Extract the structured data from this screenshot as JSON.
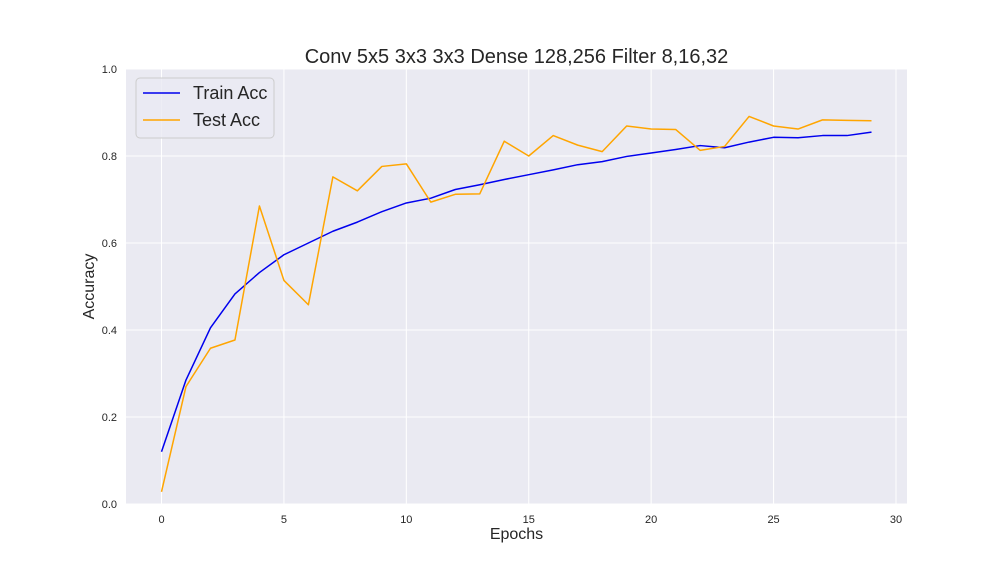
{
  "chart_data": {
    "type": "line",
    "title": "Conv 5x5 3x3 3x3 Dense 128,256 Filter 8,16,32",
    "xlabel": "Epochs",
    "ylabel": "Accuracy",
    "xlim": [
      -1.45,
      30.45
    ],
    "ylim": [
      0.0,
      1.0
    ],
    "xticks": [
      0,
      5,
      10,
      15,
      20,
      25,
      30
    ],
    "yticks": [
      0.0,
      0.2,
      0.4,
      0.6,
      0.8,
      1.0
    ],
    "xtick_labels": [
      "0",
      "5",
      "10",
      "15",
      "20",
      "25",
      "30"
    ],
    "ytick_labels": [
      "0.0",
      "0.2",
      "0.4",
      "0.6",
      "0.8",
      "1.0"
    ],
    "grid": true,
    "legend_position": "top-left",
    "x": [
      0,
      1,
      2,
      3,
      4,
      5,
      6,
      7,
      8,
      9,
      10,
      11,
      12,
      13,
      14,
      15,
      16,
      17,
      18,
      19,
      20,
      21,
      22,
      23,
      24,
      25,
      26,
      27,
      28,
      29
    ],
    "series": [
      {
        "name": "Train Acc",
        "color": "#0000ee",
        "values": [
          0.12,
          0.285,
          0.405,
          0.483,
          0.532,
          0.573,
          0.6,
          0.627,
          0.648,
          0.672,
          0.692,
          0.703,
          0.723,
          0.734,
          0.746,
          0.757,
          0.768,
          0.78,
          0.787,
          0.799,
          0.807,
          0.815,
          0.824,
          0.819,
          0.832,
          0.843,
          0.842,
          0.847,
          0.847,
          0.855
        ]
      },
      {
        "name": "Test Acc",
        "color": "#ffa500",
        "values": [
          0.028,
          0.27,
          0.358,
          0.377,
          0.685,
          0.514,
          0.458,
          0.752,
          0.72,
          0.776,
          0.782,
          0.694,
          0.712,
          0.713,
          0.834,
          0.8,
          0.847,
          0.825,
          0.81,
          0.869,
          0.862,
          0.861,
          0.813,
          0.822,
          0.891,
          0.869,
          0.862,
          0.883,
          0.882,
          0.881
        ]
      }
    ],
    "colors": {
      "axes_background": "#eaeaf2",
      "grid": "#ffffff",
      "text": "#262626"
    }
  }
}
